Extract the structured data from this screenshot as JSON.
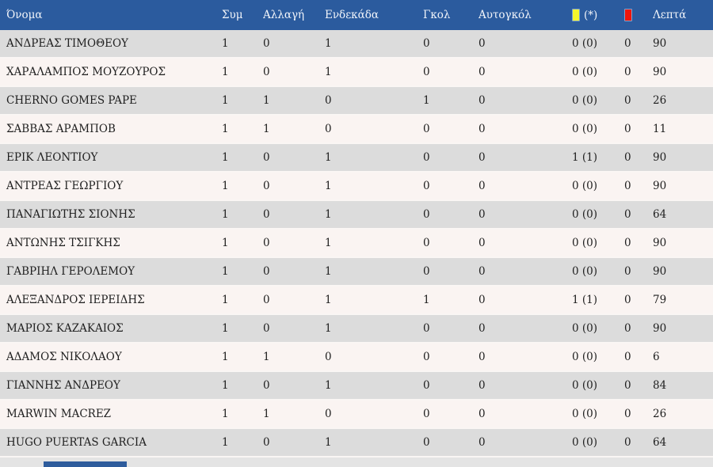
{
  "colors": {
    "header_bg": "#2b5b9e",
    "header_text": "#f2f5fa",
    "row_gray": "#dcdcdc",
    "row_pink": "#faf4f2",
    "yellow_card": "#f7f72b",
    "red_card": "#ee1509",
    "body_text": "#1f1f1f"
  },
  "table": {
    "columns": {
      "name": {
        "label": "Όνομα"
      },
      "sym": {
        "label": "Συμ"
      },
      "allagi": {
        "label": "Αλλαγή"
      },
      "endekada": {
        "label": "Ενδεκάδα"
      },
      "gkol": {
        "label": "Γκολ"
      },
      "autogkol": {
        "label": "Αυτογκόλ"
      },
      "yellow": {
        "label": "(*)",
        "icon": "yellow-card-icon"
      },
      "red": {
        "label": "",
        "icon": "red-card-icon"
      },
      "lepta": {
        "label": "Λεπτά"
      }
    },
    "rows": [
      {
        "name": "ΑΝΔΡΕΑΣ ΤΙΜΟΘΕΟΥ",
        "sym": "1",
        "allagi": "0",
        "endekada": "1",
        "gkol": "0",
        "autogkol": "0",
        "yellow": "0 (0)",
        "red": "0",
        "lepta": "90"
      },
      {
        "name": "ΧΑΡΑΛΑΜΠΟΣ ΜΟΥΖΟΥΡΟΣ",
        "sym": "1",
        "allagi": "0",
        "endekada": "1",
        "gkol": "0",
        "autogkol": "0",
        "yellow": "0 (0)",
        "red": "0",
        "lepta": "90"
      },
      {
        "name": "CHERNO GOMES PAPE",
        "sym": "1",
        "allagi": "1",
        "endekada": "0",
        "gkol": "1",
        "autogkol": "0",
        "yellow": "0 (0)",
        "red": "0",
        "lepta": "26"
      },
      {
        "name": "ΣΑΒΒΑΣ ΑΡΑΜΠΟΒ",
        "sym": "1",
        "allagi": "1",
        "endekada": "0",
        "gkol": "0",
        "autogkol": "0",
        "yellow": "0 (0)",
        "red": "0",
        "lepta": "11"
      },
      {
        "name": "ΕΡΙΚ ΛΕΟΝΤΙΟΥ",
        "sym": "1",
        "allagi": "0",
        "endekada": "1",
        "gkol": "0",
        "autogkol": "0",
        "yellow": "1 (1)",
        "red": "0",
        "lepta": "90"
      },
      {
        "name": "ΑΝΤΡΕΑΣ ΓΕΩΡΓΙΟΥ",
        "sym": "1",
        "allagi": "0",
        "endekada": "1",
        "gkol": "0",
        "autogkol": "0",
        "yellow": "0 (0)",
        "red": "0",
        "lepta": "90"
      },
      {
        "name": "ΠΑΝΑΓΙΩΤΗΣ ΣΙΟΝΗΣ",
        "sym": "1",
        "allagi": "0",
        "endekada": "1",
        "gkol": "0",
        "autogkol": "0",
        "yellow": "0 (0)",
        "red": "0",
        "lepta": "64"
      },
      {
        "name": "ΑΝΤΩΝΗΣ ΤΣΙΓΚΗΣ",
        "sym": "1",
        "allagi": "0",
        "endekada": "1",
        "gkol": "0",
        "autogkol": "0",
        "yellow": "0 (0)",
        "red": "0",
        "lepta": "90"
      },
      {
        "name": "ΓΑΒΡΙΗΛ ΓΕΡΟΛΕΜΟΥ",
        "sym": "1",
        "allagi": "0",
        "endekada": "1",
        "gkol": "0",
        "autogkol": "0",
        "yellow": "0 (0)",
        "red": "0",
        "lepta": "90"
      },
      {
        "name": "ΑΛΕΞΑΝΔΡΟΣ ΙΕΡΕΙΔΗΣ",
        "sym": "1",
        "allagi": "0",
        "endekada": "1",
        "gkol": "1",
        "autogkol": "0",
        "yellow": "1 (1)",
        "red": "0",
        "lepta": "79"
      },
      {
        "name": "ΜΑΡΙΟΣ ΚΑΖΑΚΑΙΟΣ",
        "sym": "1",
        "allagi": "0",
        "endekada": "1",
        "gkol": "0",
        "autogkol": "0",
        "yellow": "0 (0)",
        "red": "0",
        "lepta": "90"
      },
      {
        "name": "ΑΔΑΜΟΣ ΝΙΚΟΛΑΟΥ",
        "sym": "1",
        "allagi": "1",
        "endekada": "0",
        "gkol": "0",
        "autogkol": "0",
        "yellow": "0 (0)",
        "red": "0",
        "lepta": "6"
      },
      {
        "name": "ΓΙΑΝΝΗΣ ΑΝΔΡΕΟΥ",
        "sym": "1",
        "allagi": "0",
        "endekada": "1",
        "gkol": "0",
        "autogkol": "0",
        "yellow": "0 (0)",
        "red": "0",
        "lepta": "84"
      },
      {
        "name": "MARWIN MACREZ",
        "sym": "1",
        "allagi": "1",
        "endekada": "0",
        "gkol": "0",
        "autogkol": "0",
        "yellow": "0 (0)",
        "red": "0",
        "lepta": "26"
      },
      {
        "name": "HUGO PUERTAS GARCIA",
        "sym": "1",
        "allagi": "0",
        "endekada": "1",
        "gkol": "0",
        "autogkol": "0",
        "yellow": "0 (0)",
        "red": "0",
        "lepta": "64"
      }
    ]
  }
}
